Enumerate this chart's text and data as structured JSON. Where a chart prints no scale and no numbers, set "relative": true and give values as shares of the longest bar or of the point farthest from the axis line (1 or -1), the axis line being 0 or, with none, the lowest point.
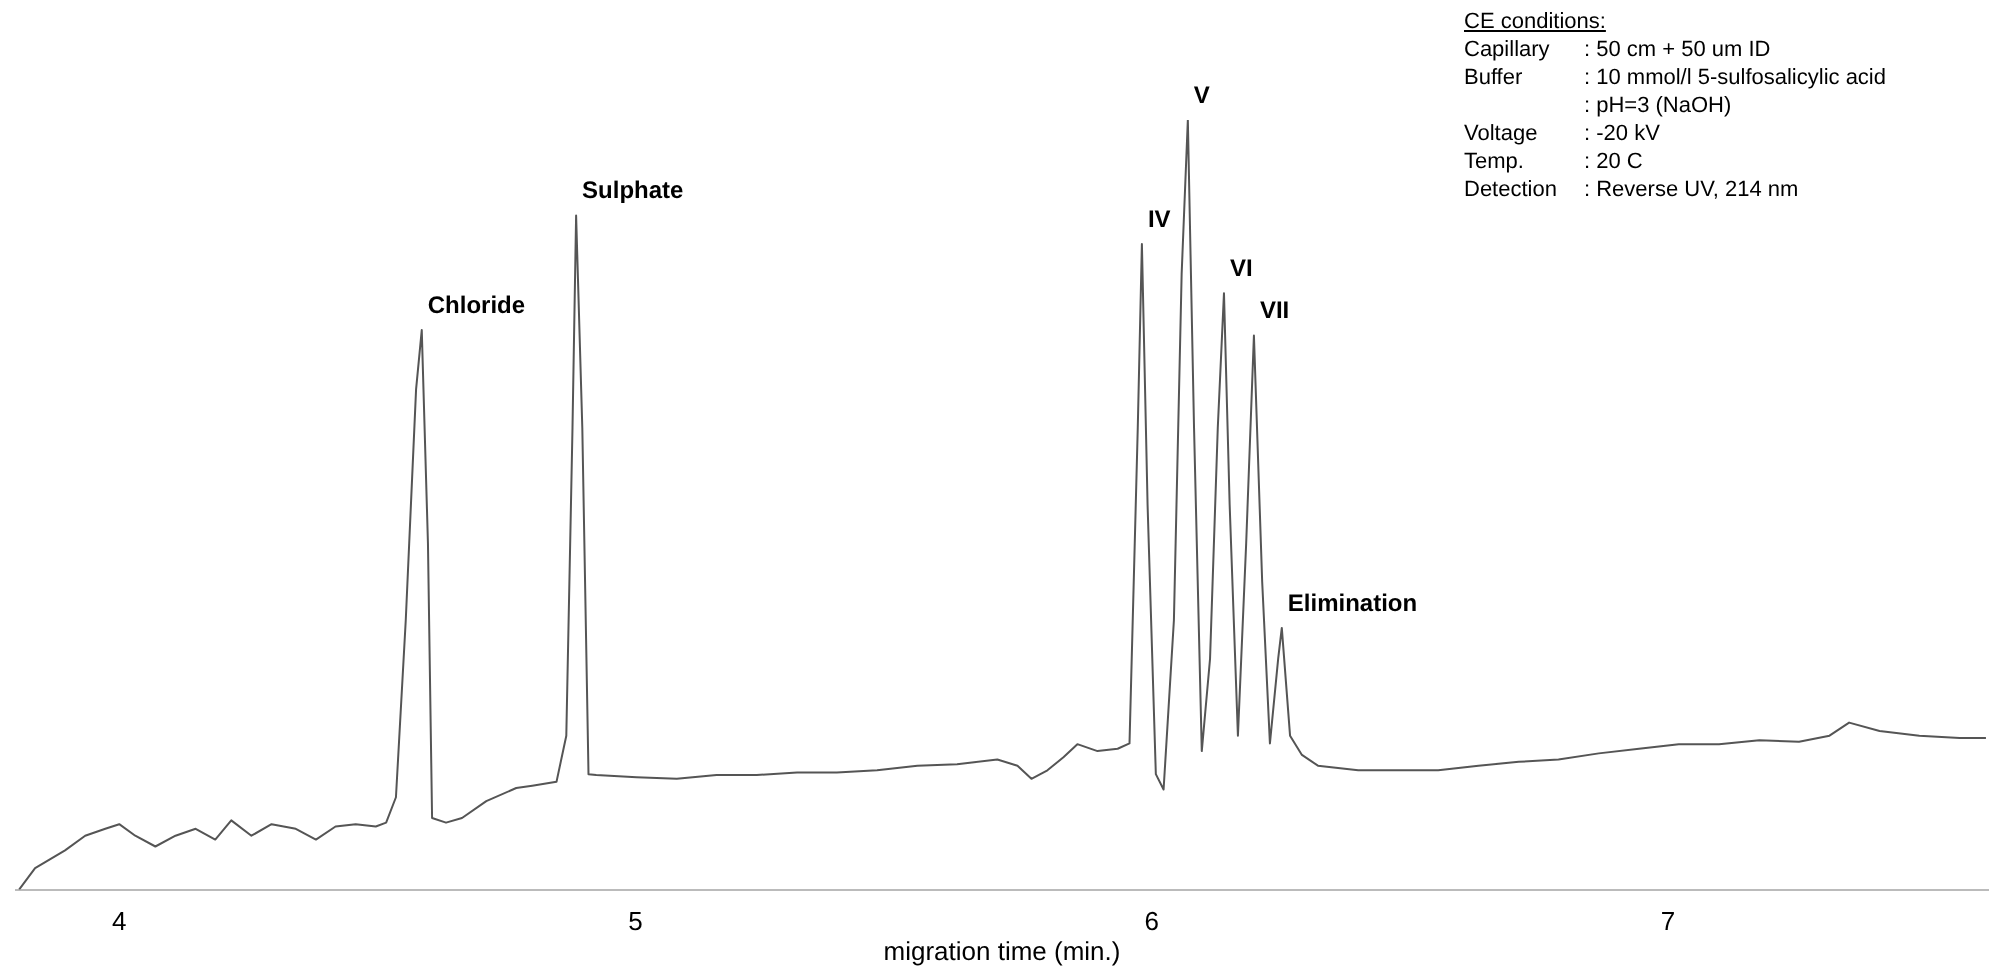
{
  "chart_data": {
    "type": "line",
    "relative": true,
    "xlabel": "migration time (min.)",
    "xlim": [
      3.8,
      7.62
    ],
    "xticks": [
      4,
      5,
      6,
      7
    ],
    "grid": false,
    "legend": false,
    "marker": "none",
    "line_style": "solid",
    "series": [
      {
        "color": "#555555",
        "x": [
          3.806,
          3.837,
          3.895,
          3.934,
          3.973,
          4.0,
          4.031,
          4.07,
          4.109,
          4.148,
          4.186,
          4.217,
          4.256,
          4.295,
          4.342,
          4.381,
          4.419,
          4.458,
          4.497,
          4.517,
          4.536,
          4.555,
          4.575,
          4.586,
          4.598,
          4.606,
          4.633,
          4.664,
          4.711,
          4.769,
          4.8,
          4.847,
          4.866,
          4.878,
          4.885,
          4.897,
          4.909,
          4.924,
          5.002,
          5.08,
          5.157,
          5.235,
          5.313,
          5.39,
          5.468,
          5.546,
          5.623,
          5.701,
          5.74,
          5.767,
          5.798,
          5.829,
          5.856,
          5.895,
          5.934,
          5.957,
          5.973,
          5.981,
          5.992,
          6.008,
          6.023,
          6.043,
          6.058,
          6.07,
          6.082,
          6.097,
          6.113,
          6.128,
          6.14,
          6.151,
          6.167,
          6.183,
          6.198,
          6.214,
          6.229,
          6.245,
          6.252,
          6.268,
          6.291,
          6.322,
          6.4,
          6.478,
          6.555,
          6.633,
          6.711,
          6.788,
          6.866,
          6.944,
          7.021,
          7.099,
          7.177,
          7.254,
          7.313,
          7.351,
          7.41,
          7.487,
          7.565,
          7.616
        ],
        "values": [
          0,
          0.028,
          0.051,
          0.07,
          0.079,
          0.085,
          0.07,
          0.056,
          0.07,
          0.079,
          0.065,
          0.09,
          0.07,
          0.085,
          0.079,
          0.065,
          0.082,
          0.085,
          0.082,
          0.087,
          0.12,
          0.35,
          0.65,
          0.727,
          0.45,
          0.093,
          0.087,
          0.093,
          0.115,
          0.132,
          0.135,
          0.14,
          0.2,
          0.6,
          0.876,
          0.6,
          0.15,
          0.149,
          0.146,
          0.144,
          0.149,
          0.149,
          0.152,
          0.152,
          0.155,
          0.161,
          0.163,
          0.169,
          0.161,
          0.144,
          0.155,
          0.172,
          0.189,
          0.18,
          0.183,
          0.19,
          0.6,
          0.839,
          0.5,
          0.15,
          0.13,
          0.35,
          0.8,
          1,
          0.6,
          0.18,
          0.3,
          0.6,
          0.775,
          0.5,
          0.2,
          0.45,
          0.72,
          0.4,
          0.19,
          0.3,
          0.34,
          0.2,
          0.175,
          0.161,
          0.155,
          0.155,
          0.155,
          0.161,
          0.166,
          0.169,
          0.177,
          0.183,
          0.189,
          0.189,
          0.194,
          0.192,
          0.2,
          0.217,
          0.206,
          0.2,
          0.197,
          0.197
        ]
      }
    ],
    "annotations": [
      {
        "text": "Chloride",
        "x": 4.586,
        "y": 0.727
      },
      {
        "text": "Sulphate",
        "x": 4.885,
        "y": 0.876
      },
      {
        "text": "IV",
        "x": 5.981,
        "y": 0.839
      },
      {
        "text": "V",
        "x": 6.07,
        "y": 1
      },
      {
        "text": "VI",
        "x": 6.14,
        "y": 0.775
      },
      {
        "text": "VII",
        "x": 6.198,
        "y": 0.72
      },
      {
        "text": "Elimination",
        "x": 6.252,
        "y": 0.34
      },
      "CE conditions:",
      "Capillary : 50 cm + 50 um ID",
      "Buffer : 10 mmol/l 5-sulfosalicylic acid",
      " : pH=3 (NaOH)",
      "Voltage : -20 kV",
      "Temp. : 20 C",
      "Detection : Reverse UV, 214 nm"
    ]
  }
}
